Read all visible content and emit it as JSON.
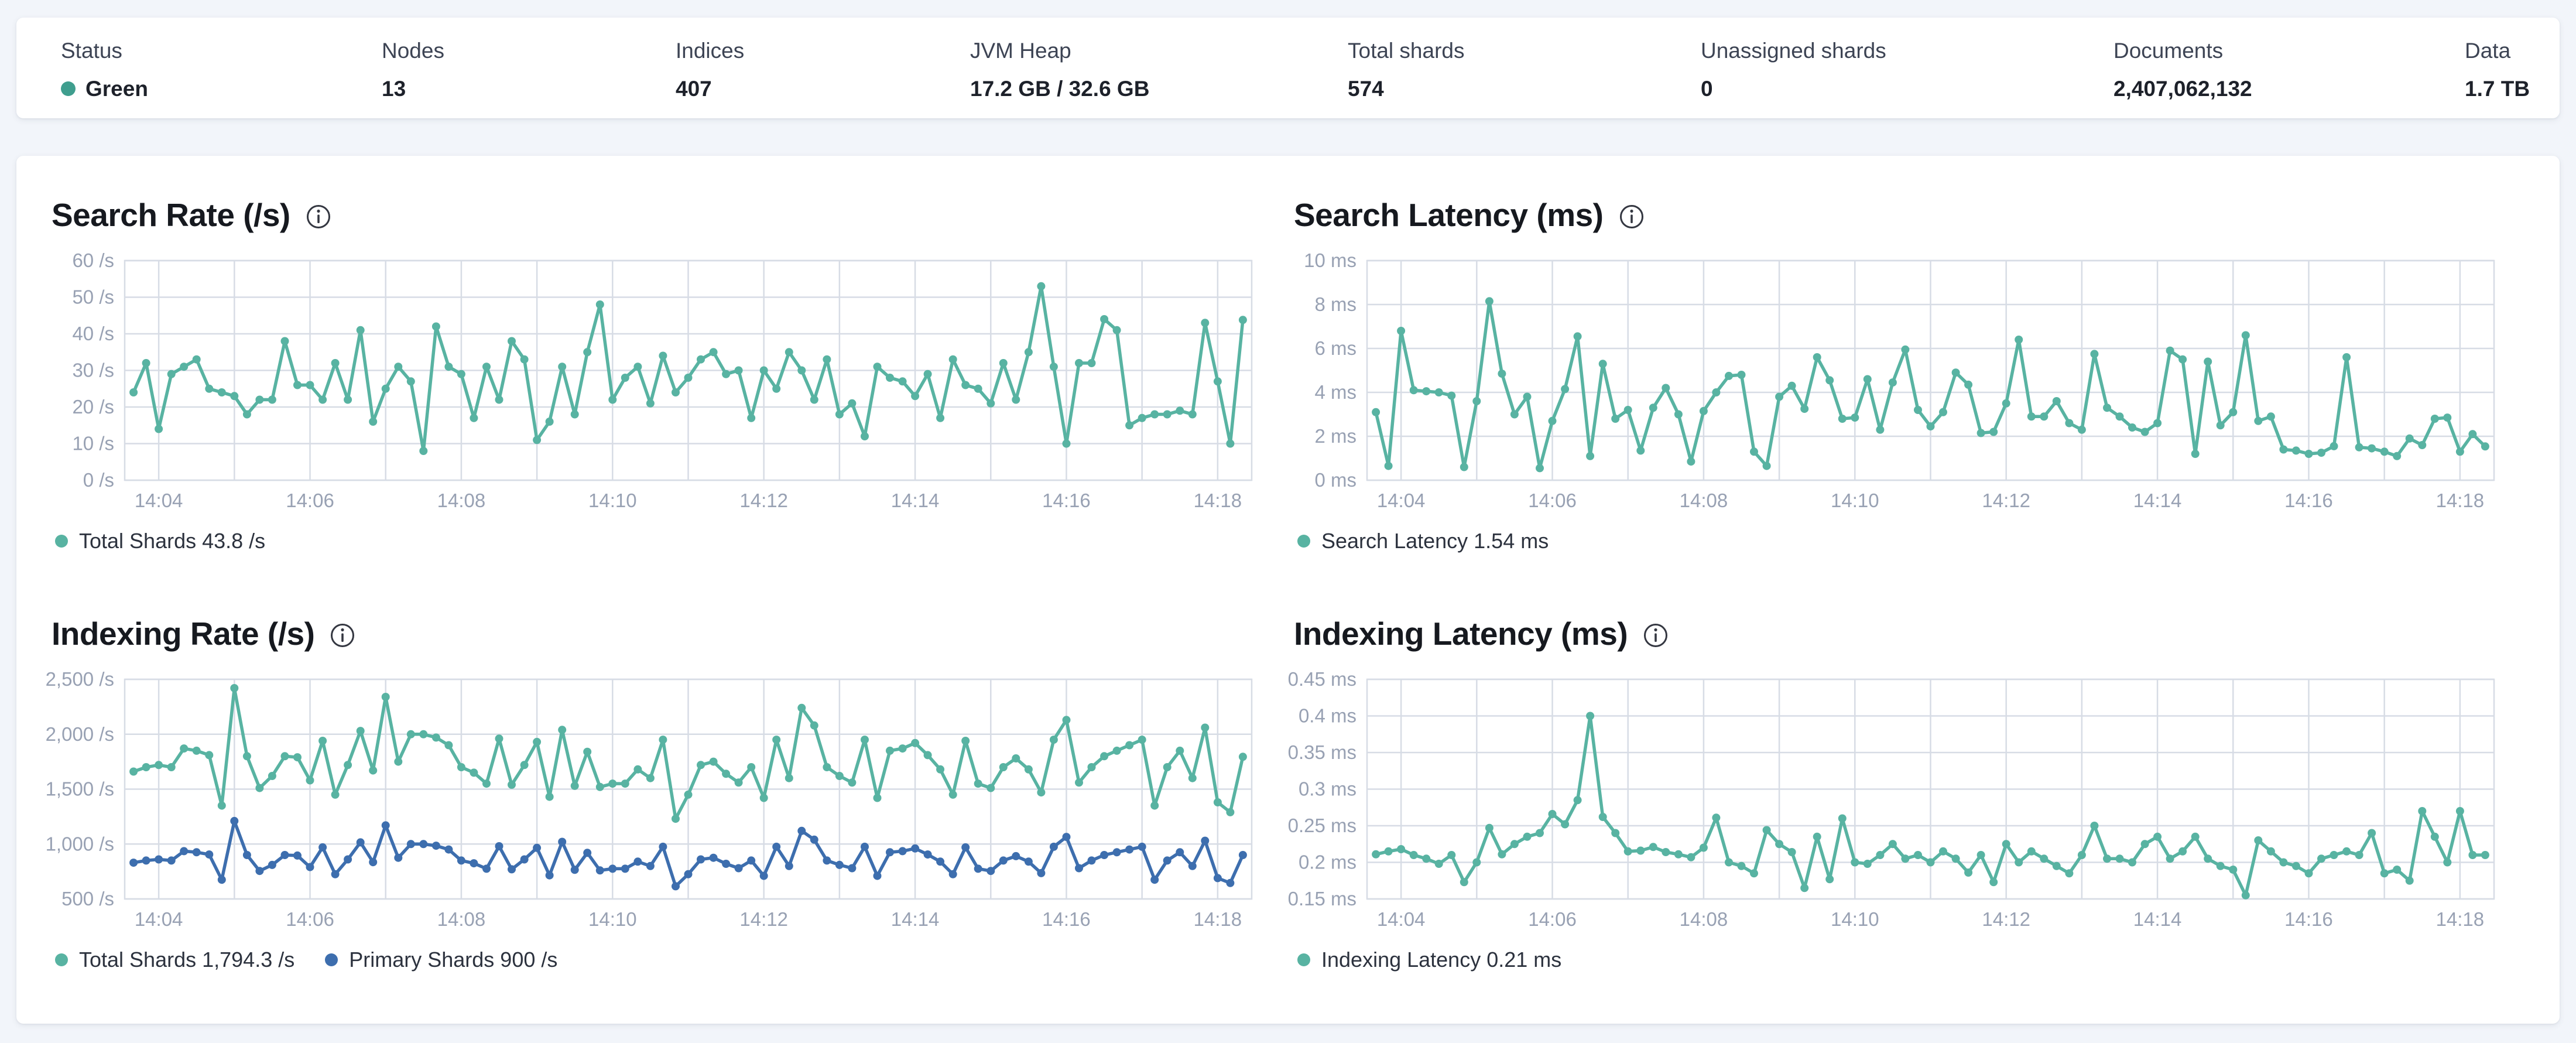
{
  "colors": {
    "status_green": "#3f9e8e",
    "chart_teal": "#58b3a2",
    "chart_blue": "#3d6eae",
    "grid": "#d7dce5",
    "axis_text": "#98a1b3"
  },
  "stats": {
    "status": {
      "label": "Status",
      "value": "Green"
    },
    "items": [
      {
        "label": "Nodes",
        "value": "13"
      },
      {
        "label": "Indices",
        "value": "407"
      },
      {
        "label": "JVM Heap",
        "value": "17.2 GB / 32.6 GB"
      },
      {
        "label": "Total shards",
        "value": "574"
      },
      {
        "label": "Unassigned shards",
        "value": "0"
      },
      {
        "label": "Documents",
        "value": "2,407,062,132"
      },
      {
        "label": "Data",
        "value": "1.7 TB"
      }
    ]
  },
  "x_axis": {
    "domain_start_s": 213,
    "domain_end_s": 1107,
    "point_start_s": 220,
    "point_interval_s": 10,
    "grid_every_s": 60,
    "labels": [
      {
        "t": 240,
        "text": "14:04"
      },
      {
        "t": 360,
        "text": "14:06"
      },
      {
        "t": 480,
        "text": "14:08"
      },
      {
        "t": 600,
        "text": "14:10"
      },
      {
        "t": 720,
        "text": "14:12"
      },
      {
        "t": 840,
        "text": "14:14"
      },
      {
        "t": 960,
        "text": "14:16"
      },
      {
        "t": 1080,
        "text": "14:18"
      }
    ]
  },
  "chart_data": [
    {
      "id": "search-rate",
      "type": "line",
      "title": "Search Rate (/s)",
      "ymin": 0,
      "ymax": 60,
      "ytick_values": [
        0,
        10,
        20,
        30,
        40,
        50,
        60
      ],
      "ytick_labels": [
        "0 /s",
        "10 /s",
        "20 /s",
        "30 /s",
        "40 /s",
        "50 /s",
        "60 /s"
      ],
      "legend": [
        {
          "label": "Total Shards 43.8 /s",
          "color": "#58b3a2"
        }
      ],
      "series": [
        {
          "name": "Total Shards",
          "color": "#58b3a2",
          "values": [
            24,
            32,
            14,
            29,
            31,
            33,
            25,
            24,
            23,
            18,
            22,
            22,
            38,
            26,
            26,
            22,
            32,
            22,
            41,
            16,
            25,
            31,
            27,
            8,
            42,
            31,
            29,
            17,
            31,
            22,
            38,
            33,
            11,
            16,
            31,
            18,
            35,
            48,
            22,
            28,
            31,
            21,
            34,
            24,
            28,
            33,
            35,
            29,
            30,
            17,
            30,
            25,
            35,
            30,
            22,
            33,
            18,
            21,
            12,
            31,
            28,
            27,
            23,
            29,
            17,
            33,
            26,
            25,
            21,
            32,
            22,
            35,
            53,
            31,
            10,
            32,
            32,
            44,
            41,
            15,
            17,
            18,
            18,
            19,
            18,
            43,
            27,
            10,
            43.8
          ]
        }
      ]
    },
    {
      "id": "search-latency",
      "type": "line",
      "title": "Search Latency (ms)",
      "ymin": 0,
      "ymax": 10,
      "ytick_values": [
        0,
        2,
        4,
        6,
        8,
        10
      ],
      "ytick_labels": [
        "0 ms",
        "2 ms",
        "4 ms",
        "6 ms",
        "8 ms",
        "10 ms"
      ],
      "legend": [
        {
          "label": "Search Latency 1.54 ms",
          "color": "#58b3a2"
        }
      ],
      "series": [
        {
          "name": "Search Latency",
          "color": "#58b3a2",
          "values": [
            3.1,
            0.65,
            6.8,
            4.1,
            4.05,
            4.0,
            3.85,
            0.6,
            3.6,
            8.15,
            4.85,
            3.0,
            3.8,
            0.55,
            2.7,
            4.15,
            6.55,
            1.1,
            5.3,
            2.8,
            3.2,
            1.35,
            3.3,
            4.2,
            3.0,
            0.85,
            3.15,
            4.0,
            4.75,
            4.8,
            1.3,
            0.65,
            3.8,
            4.3,
            3.25,
            5.6,
            4.55,
            2.8,
            2.85,
            4.6,
            2.3,
            4.45,
            5.95,
            3.2,
            2.45,
            3.1,
            4.9,
            4.35,
            2.15,
            2.2,
            3.5,
            6.4,
            2.9,
            2.9,
            3.6,
            2.6,
            2.3,
            5.75,
            3.3,
            2.9,
            2.4,
            2.2,
            2.6,
            5.9,
            5.5,
            1.2,
            5.4,
            2.5,
            3.1,
            6.6,
            2.7,
            2.9,
            1.4,
            1.35,
            1.2,
            1.25,
            1.55,
            5.6,
            1.5,
            1.45,
            1.3,
            1.1,
            1.9,
            1.6,
            2.8,
            2.85,
            1.3,
            2.1,
            1.54
          ]
        }
      ]
    },
    {
      "id": "indexing-rate",
      "type": "line",
      "title": "Indexing Rate (/s)",
      "ymin": 500,
      "ymax": 2500,
      "ytick_values": [
        500,
        1000,
        1500,
        2000,
        2500
      ],
      "ytick_labels": [
        "500 /s",
        "1,000 /s",
        "1,500 /s",
        "2,000 /s",
        "2,500 /s"
      ],
      "legend": [
        {
          "label": "Total Shards 1,794.3 /s",
          "color": "#58b3a2"
        },
        {
          "label": "Primary Shards 900 /s",
          "color": "#3d6eae"
        }
      ],
      "series": [
        {
          "name": "Total Shards",
          "color": "#58b3a2",
          "values": [
            1660,
            1700,
            1720,
            1700,
            1870,
            1850,
            1810,
            1350,
            2420,
            1800,
            1510,
            1620,
            1800,
            1790,
            1580,
            1940,
            1450,
            1720,
            2030,
            1670,
            2340,
            1750,
            2000,
            2000,
            1970,
            1900,
            1700,
            1650,
            1550,
            1960,
            1540,
            1720,
            1930,
            1430,
            2040,
            1530,
            1840,
            1520,
            1550,
            1550,
            1680,
            1600,
            1950,
            1230,
            1450,
            1720,
            1750,
            1640,
            1560,
            1700,
            1420,
            1950,
            1600,
            2240,
            2080,
            1700,
            1620,
            1560,
            1950,
            1420,
            1850,
            1870,
            1920,
            1810,
            1680,
            1450,
            1940,
            1550,
            1510,
            1700,
            1780,
            1680,
            1470,
            1950,
            2130,
            1560,
            1700,
            1800,
            1850,
            1900,
            1950,
            1350,
            1700,
            1850,
            1600,
            2060,
            1380,
            1290,
            1794.3
          ]
        },
        {
          "name": "Primary Shards",
          "color": "#3d6eae",
          "values": [
            830,
            850,
            860,
            850,
            935,
            925,
            905,
            675,
            1210,
            900,
            755,
            810,
            900,
            895,
            790,
            970,
            725,
            860,
            1015,
            835,
            1170,
            875,
            1000,
            1000,
            985,
            950,
            850,
            825,
            775,
            980,
            770,
            860,
            965,
            715,
            1020,
            765,
            920,
            760,
            775,
            775,
            840,
            800,
            975,
            615,
            725,
            860,
            875,
            820,
            780,
            850,
            710,
            975,
            800,
            1120,
            1040,
            850,
            810,
            780,
            975,
            710,
            925,
            935,
            960,
            905,
            840,
            725,
            970,
            775,
            755,
            850,
            890,
            840,
            735,
            975,
            1065,
            780,
            850,
            900,
            925,
            950,
            975,
            675,
            850,
            925,
            800,
            1030,
            690,
            645,
            900
          ]
        }
      ]
    },
    {
      "id": "indexing-latency",
      "type": "line",
      "title": "Indexing Latency (ms)",
      "ymin": 0.15,
      "ymax": 0.45,
      "ytick_values": [
        0.15,
        0.2,
        0.25,
        0.3,
        0.35,
        0.4,
        0.45
      ],
      "ytick_labels": [
        "0.15 ms",
        "0.2 ms",
        "0.25 ms",
        "0.3 ms",
        "0.35 ms",
        "0.4 ms",
        "0.45 ms"
      ],
      "legend": [
        {
          "label": "Indexing Latency 0.21 ms",
          "color": "#58b3a2"
        }
      ],
      "series": [
        {
          "name": "Indexing Latency",
          "color": "#58b3a2",
          "values": [
            0.211,
            0.215,
            0.218,
            0.21,
            0.205,
            0.198,
            0.21,
            0.173,
            0.2,
            0.247,
            0.211,
            0.225,
            0.235,
            0.24,
            0.266,
            0.252,
            0.285,
            0.4,
            0.262,
            0.24,
            0.215,
            0.216,
            0.221,
            0.214,
            0.211,
            0.207,
            0.22,
            0.261,
            0.2,
            0.195,
            0.185,
            0.244,
            0.225,
            0.214,
            0.165,
            0.235,
            0.177,
            0.26,
            0.2,
            0.198,
            0.21,
            0.225,
            0.205,
            0.21,
            0.2,
            0.215,
            0.205,
            0.186,
            0.21,
            0.173,
            0.225,
            0.2,
            0.215,
            0.205,
            0.195,
            0.185,
            0.21,
            0.25,
            0.205,
            0.205,
            0.2,
            0.225,
            0.235,
            0.205,
            0.215,
            0.235,
            0.205,
            0.195,
            0.19,
            0.155,
            0.23,
            0.215,
            0.2,
            0.195,
            0.185,
            0.205,
            0.21,
            0.215,
            0.21,
            0.24,
            0.185,
            0.19,
            0.175,
            0.27,
            0.235,
            0.2,
            0.27,
            0.21,
            0.21
          ]
        }
      ]
    }
  ]
}
